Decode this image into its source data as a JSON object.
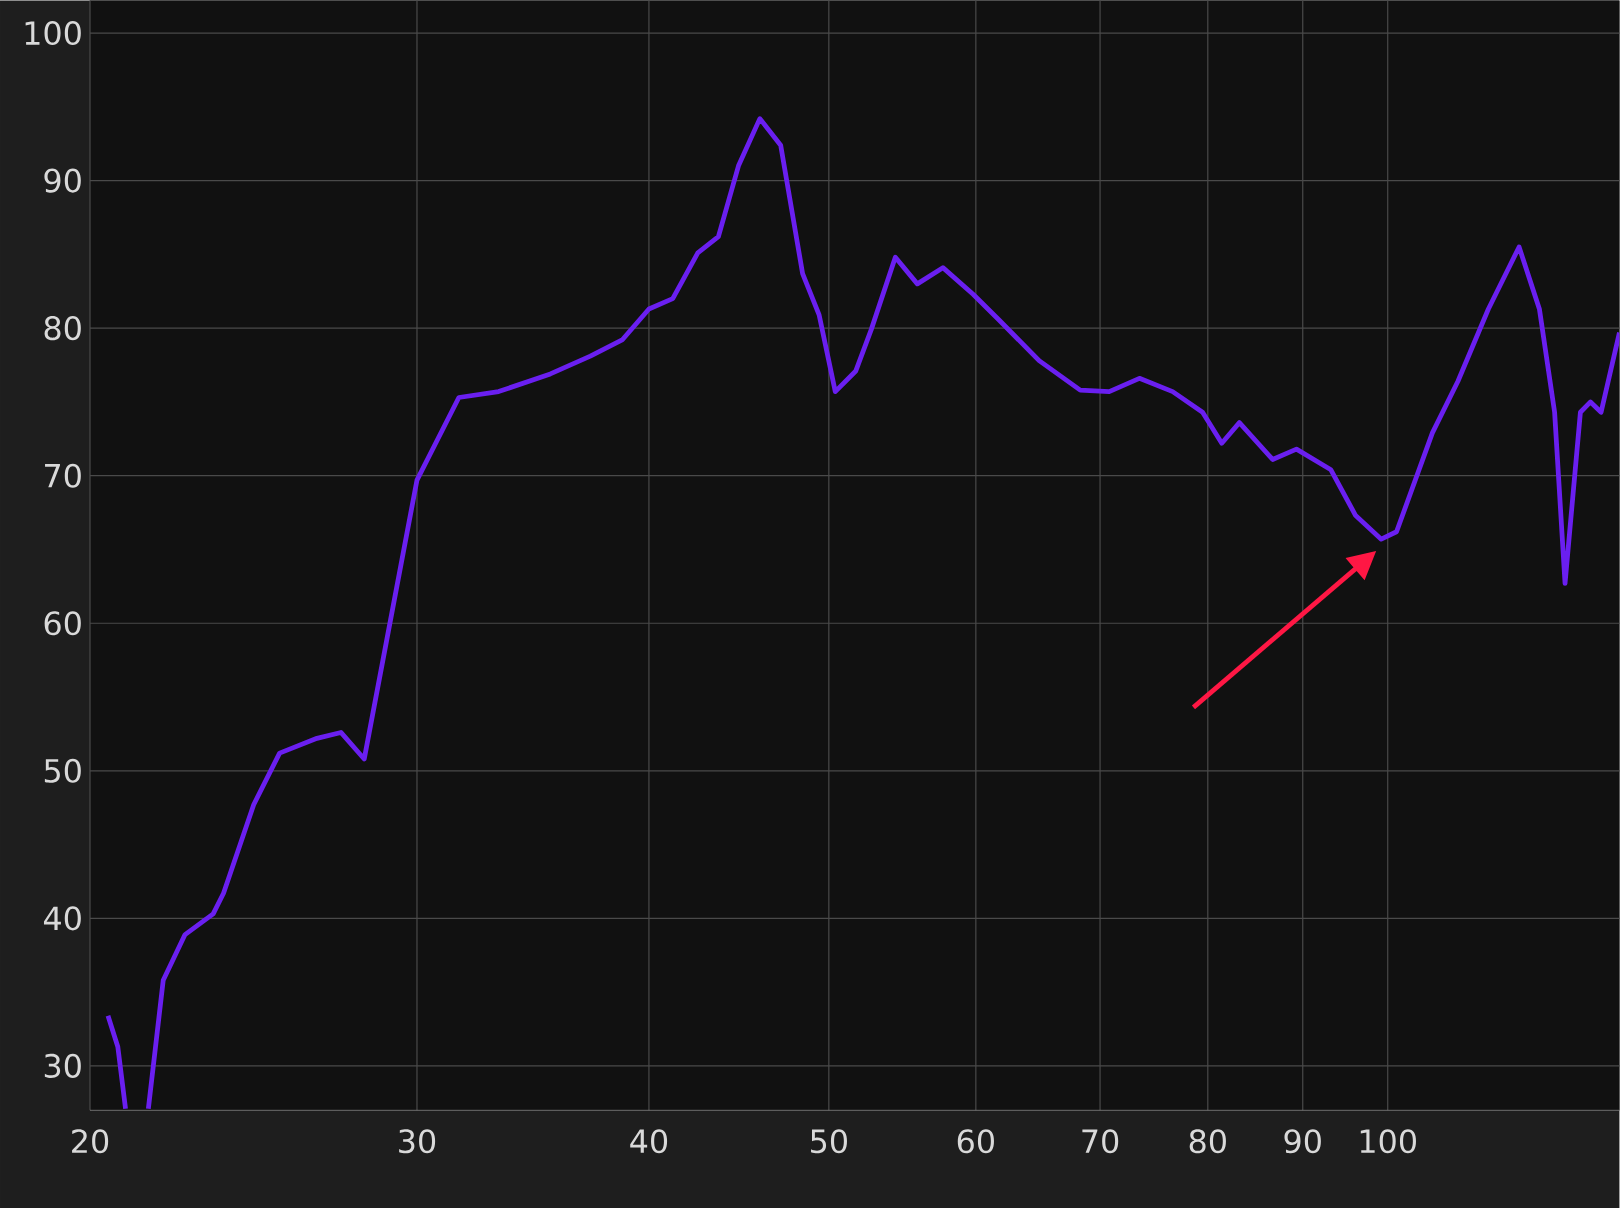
{
  "chart_data": {
    "type": "line",
    "log": "x",
    "grid": true,
    "marker": "none",
    "line_style": "solid",
    "xlim": [
      20,
      133.3
    ],
    "ylim": [
      27,
      102.2
    ],
    "xticks": [
      20,
      30,
      40,
      50,
      60,
      70,
      80,
      90,
      100
    ],
    "yticks": [
      30,
      40,
      50,
      60,
      70,
      80,
      90,
      100
    ],
    "series": [
      {
        "color": "#6a1ff0",
        "x": [
          20.45,
          20.7,
          20.9,
          21.2,
          21.5,
          21.9,
          22.5,
          23.3,
          23.6,
          24.5,
          25.3,
          26.5,
          27.3,
          28.1,
          28.9,
          30,
          31.6,
          33.2,
          35.4,
          37.2,
          38.7,
          40,
          41.2,
          42.5,
          43.6,
          44.7,
          45.9,
          47.1,
          48.4,
          49.4,
          50.4,
          51.7,
          52.7,
          54.3,
          55.8,
          57.6,
          59.8,
          61.7,
          64.9,
          68.3,
          70.8,
          73.5,
          76.6,
          79.5,
          81.4,
          83.2,
          86.7,
          89.3,
          93.2,
          96.1,
          99.2,
          101.1,
          105.7,
          109.1,
          113.3,
          117.7,
          120.7,
          123.0,
          124.6,
          127.0,
          128.6,
          130.3,
          133.3
        ],
        "values": [
          33.4,
          31.3,
          27.1,
          null,
          27.1,
          35.8,
          38.9,
          40.3,
          41.7,
          47.7,
          51.2,
          52.2,
          52.6,
          50.8,
          58.9,
          69.7,
          75.3,
          75.7,
          76.9,
          78.1,
          79.2,
          81.3,
          82.0,
          85.1,
          86.2,
          91.0,
          94.2,
          92.4,
          83.7,
          80.9,
          75.7,
          77.1,
          79.9,
          84.8,
          83.0,
          84.1,
          82.3,
          80.6,
          77.8,
          75.8,
          75.7,
          76.6,
          75.7,
          74.3,
          72.2,
          73.6,
          71.1,
          71.8,
          70.4,
          67.3,
          65.7,
          66.2,
          72.9,
          76.4,
          81.3,
          85.5,
          81.3,
          74.3,
          62.7,
          74.3,
          75.0,
          74.3,
          79.7
        ]
      }
    ]
  }
}
